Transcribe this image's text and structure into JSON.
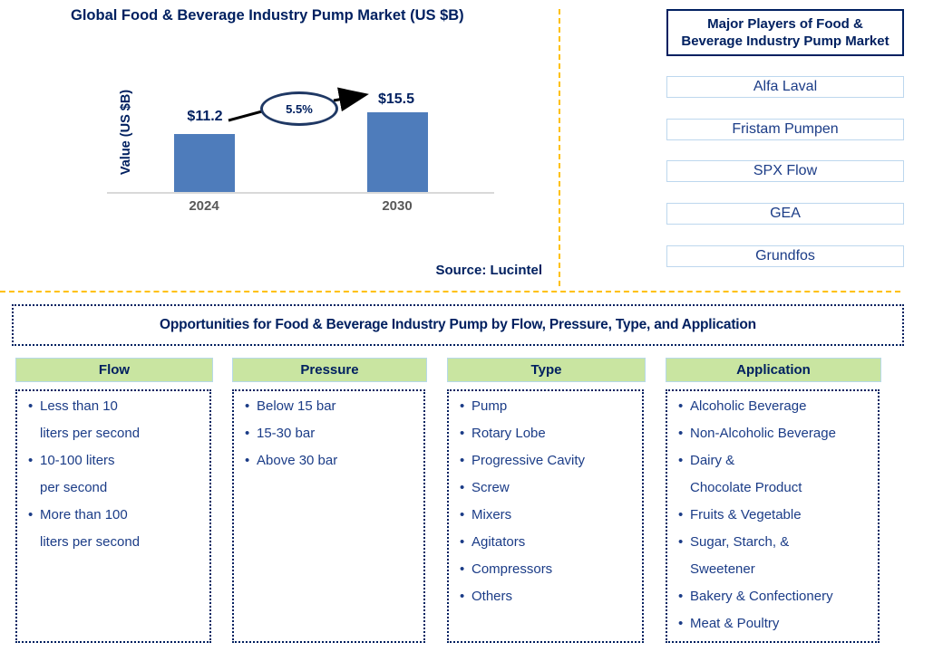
{
  "colors": {
    "navy": "#002060",
    "body_text_navy": "#1b3c87",
    "bar_blue": "#4e7cbb",
    "green_header_bg": "#c9e5a1",
    "gold_divider": "#ffc000",
    "axis_gray": "#d9d9d9",
    "tick_gray": "#595959",
    "light_blue_border": "#bdd7ee"
  },
  "chart": {
    "title": "Global Food & Beverage Industry Pump Market (US $B)",
    "y_axis_label": "Value (US $B)",
    "bar_value_labels": [
      "$11.2",
      "$15.5"
    ],
    "growth_annotation": "5.5%",
    "source": "Source: Lucintel"
  },
  "chart_data": {
    "type": "bar",
    "title": "Global Food & Beverage Industry Pump Market (US $B)",
    "categories": [
      "2024",
      "2030"
    ],
    "values": [
      11.2,
      15.5
    ],
    "xlabel": "",
    "ylabel": "Value (US $B)",
    "ylim": [
      0,
      16
    ],
    "grid": false,
    "legend": false,
    "annotations": [
      {
        "text": "5.5%",
        "meaning": "growth between 2024 and 2030"
      }
    ],
    "bar_color": "#4e7cbb"
  },
  "players_panel": {
    "title": "Major Players of Food &\nBeverage Industry Pump Market",
    "players": [
      "Alfa Laval",
      "Fristam Pumpen",
      "SPX Flow",
      "GEA",
      "Grundfos"
    ]
  },
  "opportunities_banner": "Opportunities for Food & Beverage Industry Pump by Flow, Pressure, Type, and Application",
  "columns": [
    {
      "header": "Flow",
      "items": [
        "Less than 10\nliters per second",
        "10-100 liters\nper second",
        "More than 100\nliters per second"
      ]
    },
    {
      "header": "Pressure",
      "items": [
        "Below 15 bar",
        "15-30 bar",
        "Above 30 bar"
      ]
    },
    {
      "header": "Type",
      "items": [
        "Pump",
        "Rotary Lobe",
        "Progressive Cavity",
        "Screw",
        "Mixers",
        "Agitators",
        "Compressors",
        "Others"
      ]
    },
    {
      "header": "Application",
      "items": [
        "Alcoholic Beverage",
        "Non-Alcoholic Beverage",
        "Dairy &\nChocolate Product",
        "Fruits & Vegetable",
        "Sugar, Starch, &\nSweetener",
        "Bakery & Confectionery",
        "Meat & Poultry"
      ]
    }
  ]
}
